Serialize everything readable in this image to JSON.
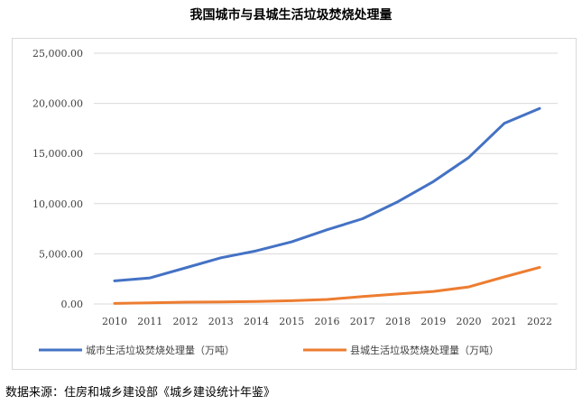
{
  "title": "我国城市与县城生活垃圾焚烧处理量",
  "source": "数据来源：住房和城乡建设部《城乡建设统计年鉴》",
  "chart_data": {
    "type": "line",
    "title": "我国城市与县城生活垃圾焚烧处理量",
    "xlabel": "",
    "ylabel": "",
    "x": [
      "2010",
      "2011",
      "2012",
      "2013",
      "2014",
      "2015",
      "2016",
      "2017",
      "2018",
      "2019",
      "2020",
      "2021",
      "2022"
    ],
    "ylim": [
      0,
      25000
    ],
    "yticks": [
      "0.00",
      "5,000.00",
      "10,000.00",
      "15,000.00",
      "20,000.00",
      "25,000.00"
    ],
    "grid": true,
    "legend_position": "bottom",
    "series": [
      {
        "name": "城市生活垃圾焚烧处理量（万吨）",
        "color": "#4472C4",
        "values": [
          2300,
          2600,
          3600,
          4600,
          5300,
          6200,
          7400,
          8500,
          10200,
          12200,
          14600,
          18000,
          19500
        ]
      },
      {
        "name": "县城生活垃圾焚烧处理量（万吨）",
        "color": "#ED7D31",
        "values": [
          50,
          120,
          180,
          200,
          250,
          320,
          450,
          750,
          1000,
          1250,
          1700,
          2700,
          3650
        ]
      }
    ]
  }
}
